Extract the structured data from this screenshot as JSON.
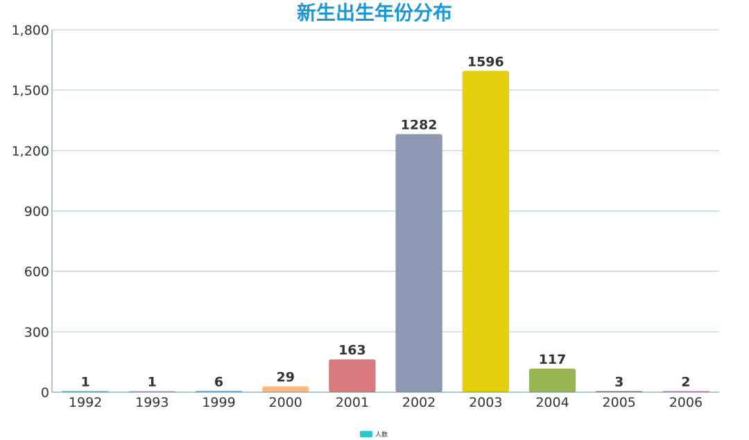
{
  "chart_data": {
    "type": "bar",
    "title": "新生出生年份分布",
    "categories": [
      "1992",
      "1993",
      "1999",
      "2000",
      "2001",
      "2002",
      "2003",
      "2004",
      "2005",
      "2006"
    ],
    "series": [
      {
        "name": "人数",
        "values": [
          1,
          1,
          6,
          29,
          163,
          1282,
          1596,
          117,
          3,
          2
        ],
        "colors": [
          "#2ec7c9",
          "#b6a2de",
          "#5ab1ef",
          "#ffb980",
          "#d87a80",
          "#8d98b3",
          "#e5cf0d",
          "#97b552",
          "#95706d",
          "#dc69aa"
        ]
      }
    ],
    "ylim": [
      0,
      1800
    ],
    "yticks": [
      0,
      300,
      600,
      900,
      1200,
      1500,
      1800
    ],
    "ytick_labels": [
      "0",
      "300",
      "600",
      "900",
      "1,200",
      "1,500",
      "1,800"
    ],
    "grid": true,
    "legend": {
      "position": "bottom-center",
      "color": "#2ec7c9"
    },
    "data_labels": true
  }
}
